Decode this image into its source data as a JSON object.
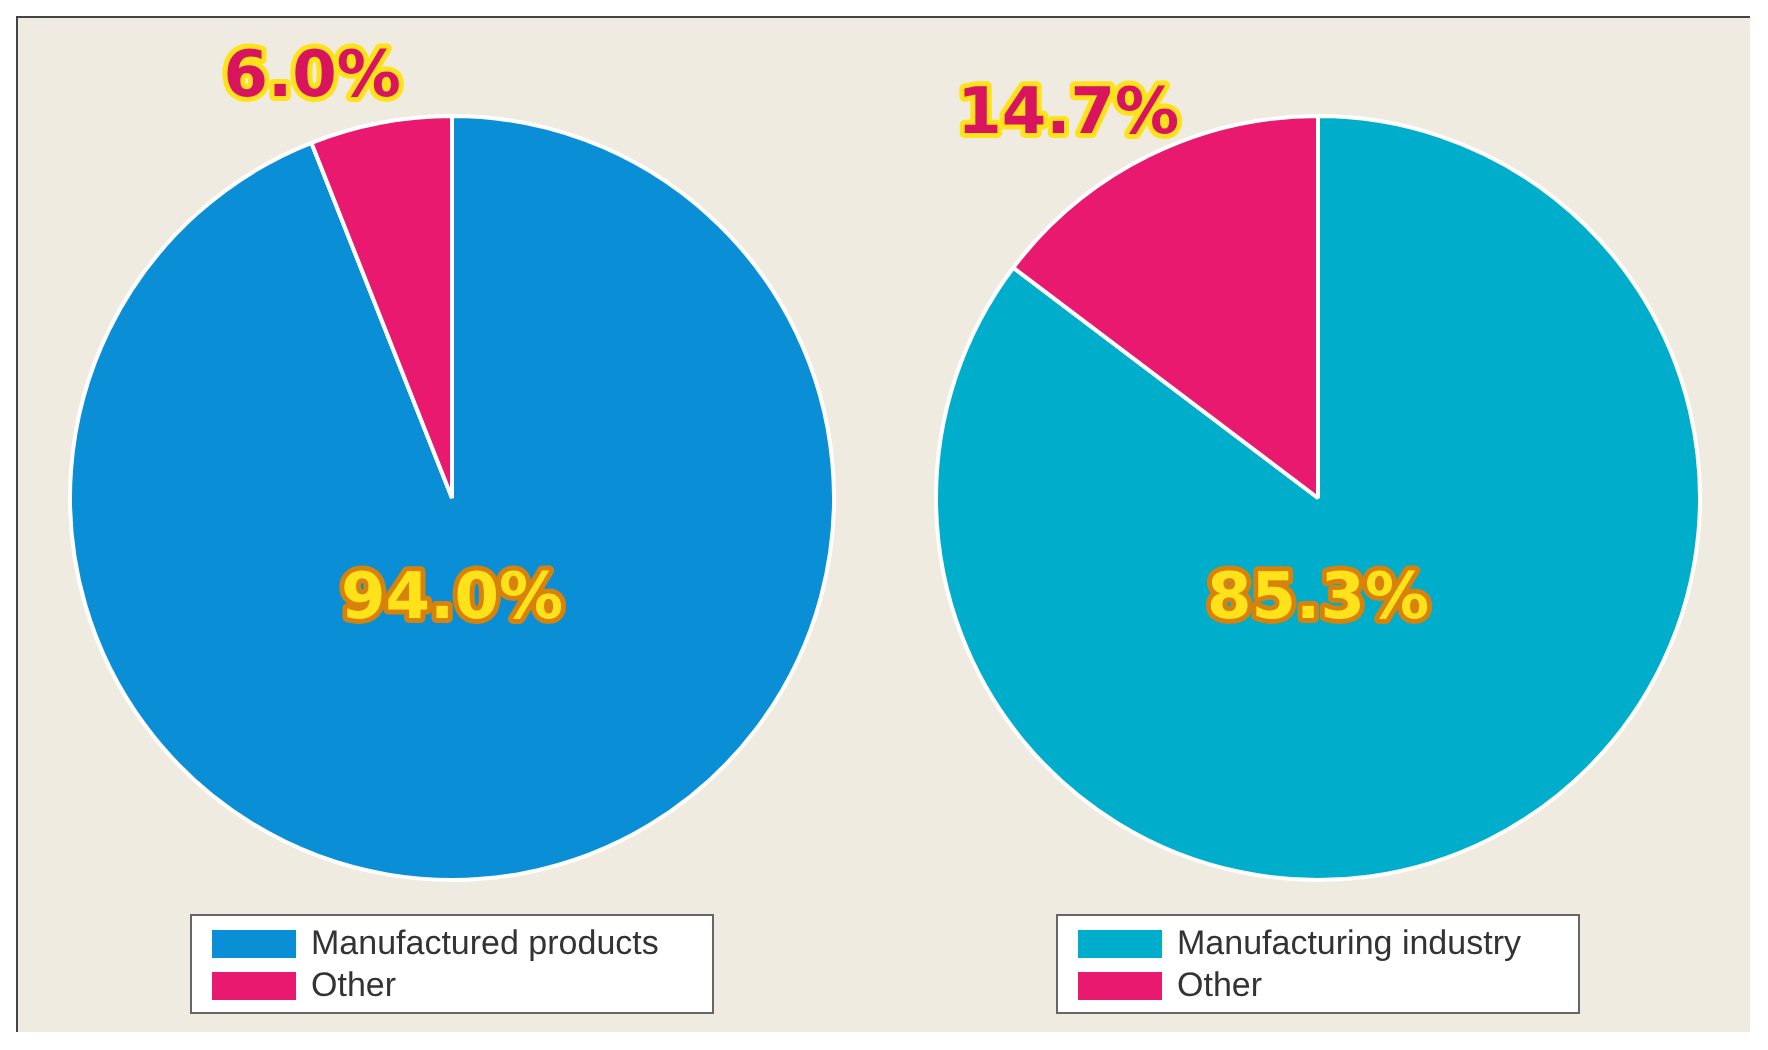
{
  "chart_data": [
    {
      "type": "pie",
      "categories": [
        "Manufactured products",
        "Other"
      ],
      "values": [
        94.0,
        6.0
      ],
      "colors": [
        "#0a8fd6",
        "#e8196e"
      ],
      "value_labels": [
        "94.0%",
        "6.0%"
      ],
      "legend": "bottom"
    },
    {
      "type": "pie",
      "categories": [
        "Manufacturing industry",
        "Other"
      ],
      "values": [
        85.3,
        14.7
      ],
      "colors": [
        "#00aecb",
        "#e8196e"
      ],
      "value_labels": [
        "85.3%",
        "14.7%"
      ],
      "legend": "bottom"
    }
  ]
}
